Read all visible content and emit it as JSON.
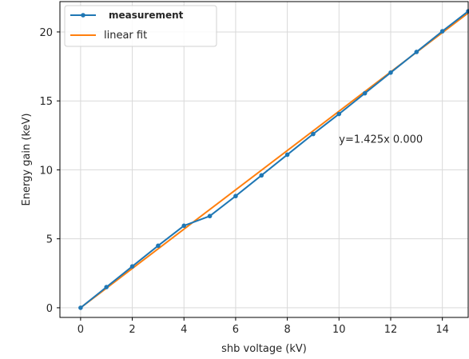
{
  "chart_data": {
    "type": "line",
    "xlabel": "shb voltage (kV)",
    "ylabel": "Energy gain (keV)",
    "xlim": [
      -0.8,
      15
    ],
    "ylim": [
      -0.7,
      22.2
    ],
    "xticks": [
      0,
      2,
      4,
      6,
      8,
      10,
      12,
      14
    ],
    "yticks": [
      0,
      5,
      10,
      15,
      20
    ],
    "grid": true,
    "legend_position": "top-left",
    "series": [
      {
        "name": "measurement",
        "color": "#1f77b4",
        "marker": "circle",
        "x": [
          0,
          1,
          2,
          3,
          4,
          5,
          6,
          7,
          8,
          9,
          10,
          11,
          12,
          13,
          14,
          15
        ],
        "y": [
          0.0,
          1.5,
          3.0,
          4.5,
          5.95,
          6.65,
          8.1,
          9.6,
          11.1,
          12.6,
          14.05,
          15.55,
          17.05,
          18.55,
          20.05,
          21.5
        ]
      },
      {
        "name": "linear fit",
        "color": "#ff7f0e",
        "marker": "none",
        "x": [
          0,
          15
        ],
        "y": [
          0.0,
          21.375
        ]
      }
    ],
    "annotations": [
      {
        "text": "y=1.425x 0.000",
        "x": 10.0,
        "y": 12.2
      }
    ]
  }
}
